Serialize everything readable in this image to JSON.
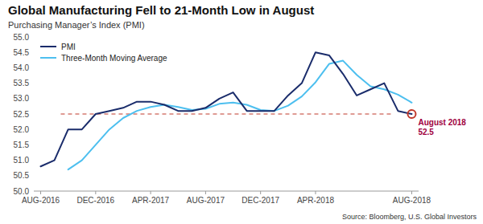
{
  "chart_data": {
    "type": "line",
    "title": "Global Manufacturing Fell to 21-Month Low in August",
    "subtitle": "Purchasing Manager’s Index (PMI)",
    "source": "Source: Bloomberg, U.S. Global Investors",
    "categories": [
      "AUG-2016",
      null,
      null,
      null,
      "DEC-2016",
      null,
      null,
      null,
      "APR-2017",
      null,
      null,
      null,
      "AUG-2017",
      null,
      null,
      null,
      "DEC-2017",
      null,
      null,
      null,
      "APR-2018",
      null,
      null,
      null,
      null,
      null,
      null,
      "AUG-2018"
    ],
    "series": [
      {
        "name": "PMI",
        "color": "#1a2c6b",
        "values": [
          50.8,
          51.0,
          52.0,
          52.0,
          52.5,
          52.6,
          52.7,
          52.9,
          52.9,
          52.8,
          52.6,
          52.6,
          52.7,
          53.0,
          53.2,
          52.6,
          52.6,
          52.6,
          53.1,
          53.5,
          54.5,
          54.4,
          53.8,
          53.1,
          53.3,
          53.5,
          52.6,
          52.5
        ]
      },
      {
        "name": "Three-Month Moving Average",
        "color": "#4dbfef",
        "values": [
          null,
          null,
          50.7,
          51.0,
          51.5,
          52.0,
          52.37,
          52.6,
          52.73,
          52.8,
          52.73,
          52.63,
          52.67,
          52.83,
          52.87,
          52.8,
          52.63,
          52.6,
          52.77,
          53.07,
          53.53,
          54.13,
          54.23,
          53.77,
          53.4,
          53.3,
          53.13,
          52.87
        ]
      }
    ],
    "ylim": [
      50.0,
      55.0
    ],
    "yticks": [
      {
        "value": 50.0,
        "label": "50.0"
      },
      50.5,
      {
        "value": 51.0,
        "label": "51.0"
      },
      51.5,
      {
        "value": 52.0,
        "label": "52.0"
      },
      52.5,
      {
        "value": 53.0,
        "label": "53.0"
      },
      53.5,
      {
        "value": 54.0,
        "label": "54.0"
      },
      54.5,
      {
        "value": 55.0,
        "label": "55.0"
      }
    ],
    "grid": false,
    "legend": "upper left",
    "reference_lines": [
      {
        "value": 52.5,
        "color": "#c0392b",
        "line_style": "dashed"
      }
    ],
    "annotations": [
      {
        "text": "August 2018\n52.5",
        "color": "#a0003e",
        "circle_color": "#c0392b"
      }
    ]
  }
}
